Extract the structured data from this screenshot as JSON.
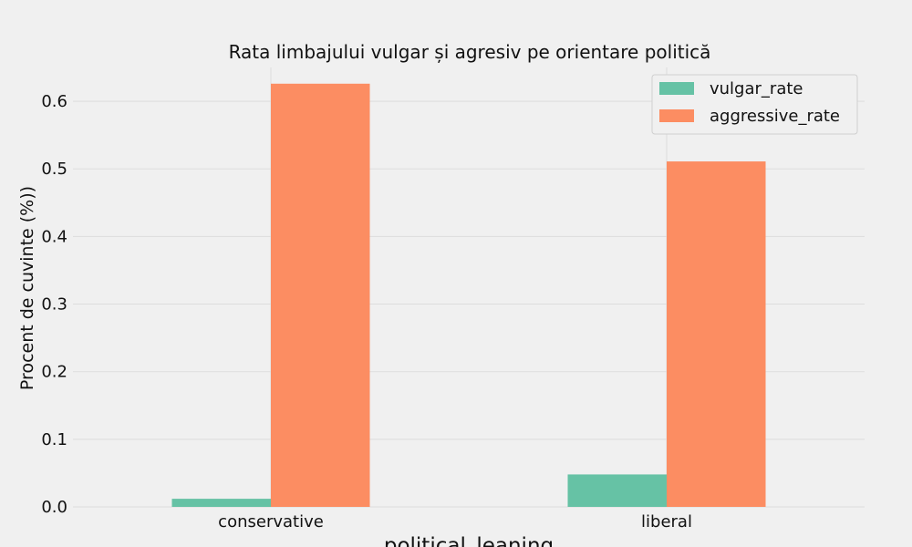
{
  "chart_data": {
    "type": "bar",
    "title": "Rata limbajului vulgar și agresiv pe orientare politică",
    "xlabel": "political_leaning",
    "ylabel": "Procent de cuvinte (%))",
    "categories": [
      "conservative",
      "liberal"
    ],
    "series": [
      {
        "name": "vulgar_rate",
        "values": [
          0.012,
          0.048
        ],
        "color": "#66c2a5"
      },
      {
        "name": "aggressive_rate",
        "values": [
          0.626,
          0.511
        ],
        "color": "#fc8d62"
      }
    ],
    "ylim": [
      0,
      0.65
    ],
    "yticks": [
      "0.0",
      "0.1",
      "0.2",
      "0.3",
      "0.4",
      "0.5",
      "0.6"
    ],
    "grid": true,
    "legend_position": "top-right"
  }
}
